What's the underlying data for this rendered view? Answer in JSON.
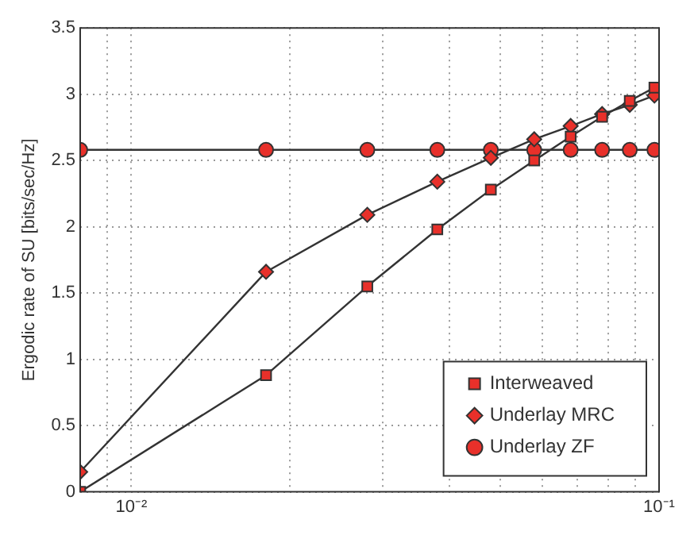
{
  "chart_data": {
    "type": "line",
    "ylabel": "Ergodic rate of SU [bits/sec/Hz]",
    "x": [
      0.008,
      0.018,
      0.028,
      0.038,
      0.048,
      0.058,
      0.068,
      0.078,
      0.088,
      0.098
    ],
    "series": [
      {
        "name": "Interweaved",
        "color": "#e8302a",
        "marker": "square",
        "values": [
          0,
          0.88,
          1.55,
          1.98,
          2.28,
          2.5,
          2.68,
          2.83,
          2.95,
          3.05
        ]
      },
      {
        "name": "Underlay MRC",
        "color": "#e8302a",
        "marker": "diamond",
        "values": [
          0.15,
          1.66,
          2.09,
          2.34,
          2.52,
          2.66,
          2.76,
          2.85,
          2.92,
          2.99
        ]
      },
      {
        "name": "Underlay ZF",
        "color": "#e8302a",
        "marker": "circle",
        "values": [
          2.58,
          2.58,
          2.58,
          2.58,
          2.58,
          2.58,
          2.58,
          2.58,
          2.58,
          2.58
        ]
      }
    ],
    "log": "x",
    "xlim": [
      0.008,
      0.1
    ],
    "xticks": [
      {
        "value": 0.009,
        "label": null
      },
      {
        "value": 0.01,
        "label": "10⁻²"
      },
      {
        "value": 0.02,
        "label": null
      },
      {
        "value": 0.03,
        "label": null
      },
      {
        "value": 0.04,
        "label": null
      },
      {
        "value": 0.05,
        "label": null
      },
      {
        "value": 0.06,
        "label": null
      },
      {
        "value": 0.07,
        "label": null
      },
      {
        "value": 0.08,
        "label": null
      },
      {
        "value": 0.09,
        "label": null
      },
      {
        "value": 0.1,
        "label": "10⁻¹"
      }
    ],
    "ylim": [
      0,
      3.5
    ],
    "yticks": [
      0,
      0.5,
      1,
      1.5,
      2,
      2.5,
      3,
      3.5
    ],
    "grid": true,
    "legend": "bottom right",
    "line_style": "solid"
  }
}
